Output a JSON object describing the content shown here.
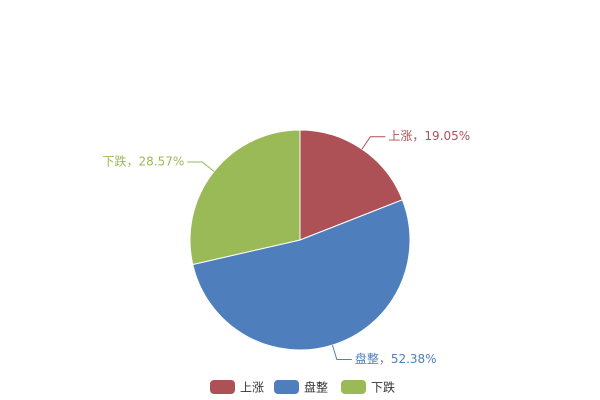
{
  "chart_data": {
    "type": "pie",
    "categories": [
      "上涨",
      "盘整",
      "下跌"
    ],
    "values": [
      19.05,
      52.38,
      28.57
    ],
    "value_labels": [
      "上涨，19.05%",
      "盘整，52.38%",
      "下跌，28.57%"
    ],
    "colors": [
      "#ae5157",
      "#4e7fbc",
      "#9aba58"
    ],
    "legend": "bottom"
  }
}
